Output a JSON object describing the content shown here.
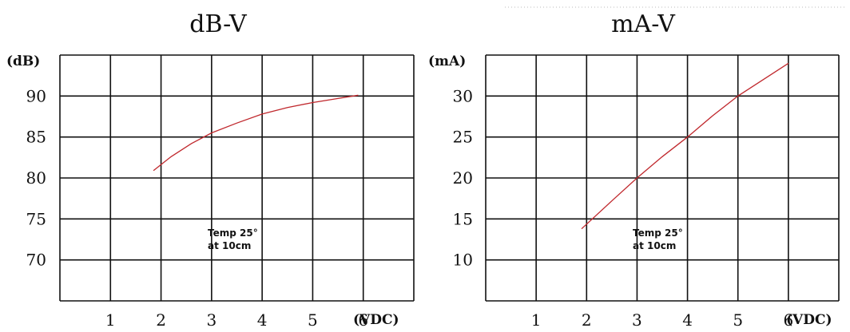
{
  "chart_data": [
    {
      "type": "line",
      "title": "dB-V",
      "ylabel": "(dB)",
      "xlabel": "(VDC)",
      "x_ticks": [
        "1",
        "2",
        "3",
        "4",
        "5",
        "6"
      ],
      "y_ticks": [
        "90",
        "85",
        "80",
        "75",
        "70"
      ],
      "xlim": [
        0,
        7
      ],
      "ylim": [
        65,
        95
      ],
      "annotation": [
        "Temp 25°",
        "at 10cm"
      ],
      "grid": true,
      "series": [
        {
          "color": "#c0282d",
          "points": [
            [
              1.85,
              80.9
            ],
            [
              2.2,
              82.6
            ],
            [
              2.6,
              84.2
            ],
            [
              3.0,
              85.5
            ],
            [
              3.5,
              86.7
            ],
            [
              4.0,
              87.8
            ],
            [
              4.5,
              88.6
            ],
            [
              5.0,
              89.2
            ],
            [
              5.5,
              89.7
            ],
            [
              5.9,
              90.1
            ]
          ]
        }
      ]
    },
    {
      "type": "line",
      "title": "mA-V",
      "ylabel": "(mA)",
      "xlabel": "(VDC)",
      "x_ticks": [
        "1",
        "2",
        "3",
        "4",
        "5",
        "6"
      ],
      "y_ticks": [
        "30",
        "25",
        "20",
        "15",
        "10"
      ],
      "xlim": [
        0,
        7
      ],
      "ylim": [
        5,
        35
      ],
      "annotation": [
        "Temp 25°",
        "at 10cm"
      ],
      "grid": true,
      "series": [
        {
          "color": "#c0282d",
          "points": [
            [
              1.9,
              13.8
            ],
            [
              2.5,
              17.2
            ],
            [
              3.0,
              20.0
            ],
            [
              3.5,
              22.6
            ],
            [
              4.0,
              25.0
            ],
            [
              4.5,
              27.6
            ],
            [
              5.0,
              30.0
            ],
            [
              5.5,
              32.0
            ],
            [
              6.0,
              34.0
            ]
          ]
        }
      ]
    }
  ]
}
